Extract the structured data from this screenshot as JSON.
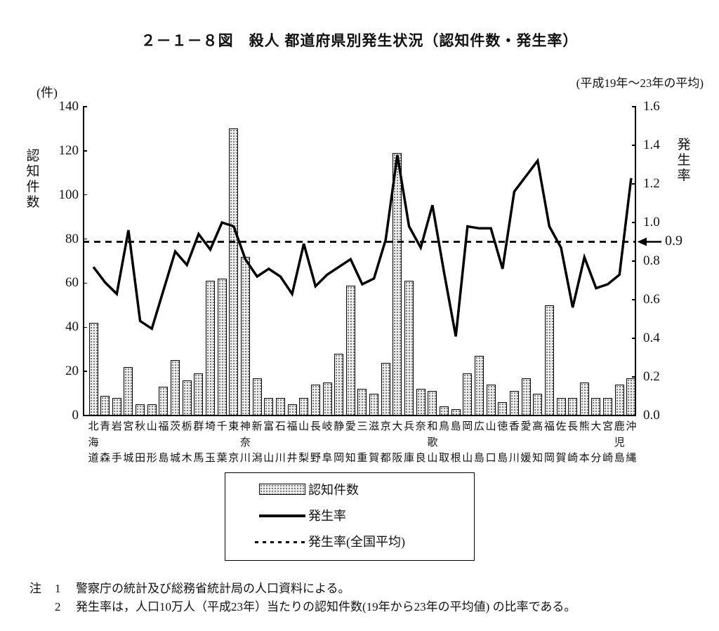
{
  "title": "２－１－８図　殺人 都道府県別発生状況（認知件数・発生率）",
  "subtitle": "(平成19年～23年の平均)",
  "left_axis": {
    "unit": "(件)",
    "title": "認知件数",
    "ticks": [
      0,
      20,
      40,
      60,
      80,
      100,
      120,
      140
    ]
  },
  "right_axis": {
    "title": "発生率",
    "ticks": [
      "0.0",
      "0.2",
      "0.4",
      "0.6",
      "0.8",
      "1.0",
      "1.2",
      "1.4",
      "1.6"
    ]
  },
  "average_annotation": "0.9",
  "legend": {
    "items": [
      {
        "swatch": "bar",
        "label": "認知件数"
      },
      {
        "swatch": "line",
        "label": "発生率"
      },
      {
        "swatch": "dashed",
        "label": "発生率(全国平均)"
      }
    ]
  },
  "notes": {
    "marker": "注",
    "items": [
      {
        "num": "1",
        "text": "警察庁の統計及び総務省統計局の人口資料による。"
      },
      {
        "num": "2",
        "text": "発生率は，人口10万人（平成23年）当たりの認知件数(19年から23年の平均値) の比率である。"
      }
    ]
  },
  "chart_data": {
    "type": "bar",
    "subtype": "bar+line dual axis",
    "categories": [
      "北海道",
      "青森",
      "岩手",
      "宮城",
      "秋田",
      "山形",
      "福島",
      "茨城",
      "栃木",
      "群馬",
      "埼玉",
      "千葉",
      "東京",
      "神奈川",
      "新潟",
      "富山",
      "石川",
      "福井",
      "山梨",
      "長野",
      "岐阜",
      "静岡",
      "愛知",
      "三重",
      "滋賀",
      "京都",
      "大阪",
      "兵庫",
      "奈良",
      "和歌山",
      "鳥取",
      "島根",
      "岡山",
      "広島",
      "山口",
      "徳島",
      "香川",
      "愛媛",
      "高知",
      "福岡",
      "佐賀",
      "長崎",
      "熊本",
      "大分",
      "宮崎",
      "鹿児島",
      "沖縄"
    ],
    "series": [
      {
        "name": "認知件数",
        "type": "bar",
        "axis": "left",
        "values": [
          42,
          9,
          8,
          22,
          5,
          5,
          13,
          25,
          16,
          19,
          61,
          62,
          130,
          72,
          17,
          8,
          8,
          5,
          8,
          14,
          15,
          28,
          59,
          12,
          10,
          24,
          119,
          61,
          12,
          11,
          4,
          3,
          19,
          27,
          14,
          6,
          11,
          17,
          10,
          50,
          8,
          8,
          15,
          8,
          8,
          14,
          17
        ]
      },
      {
        "name": "発生率",
        "type": "line",
        "axis": "right",
        "values": [
          0.77,
          0.69,
          0.63,
          0.96,
          0.49,
          0.45,
          0.65,
          0.85,
          0.78,
          0.94,
          0.86,
          1.0,
          0.98,
          0.81,
          0.72,
          0.76,
          0.72,
          0.63,
          0.89,
          0.67,
          0.73,
          0.77,
          0.81,
          0.68,
          0.71,
          0.91,
          1.35,
          0.98,
          0.87,
          1.09,
          0.74,
          0.41,
          0.98,
          0.97,
          0.97,
          0.76,
          1.16,
          1.24,
          1.32,
          0.98,
          0.87,
          0.56,
          0.82,
          0.66,
          0.68,
          0.73,
          1.23
        ]
      },
      {
        "name": "発生率(全国平均)",
        "type": "hline-dashed",
        "axis": "right",
        "value": 0.9
      }
    ],
    "left_ylabel": "認知件数",
    "right_ylabel": "発生率",
    "left_ylim": [
      0,
      140
    ],
    "right_ylim": [
      0,
      1.6
    ],
    "grid": false,
    "legend_position": "bottom"
  }
}
